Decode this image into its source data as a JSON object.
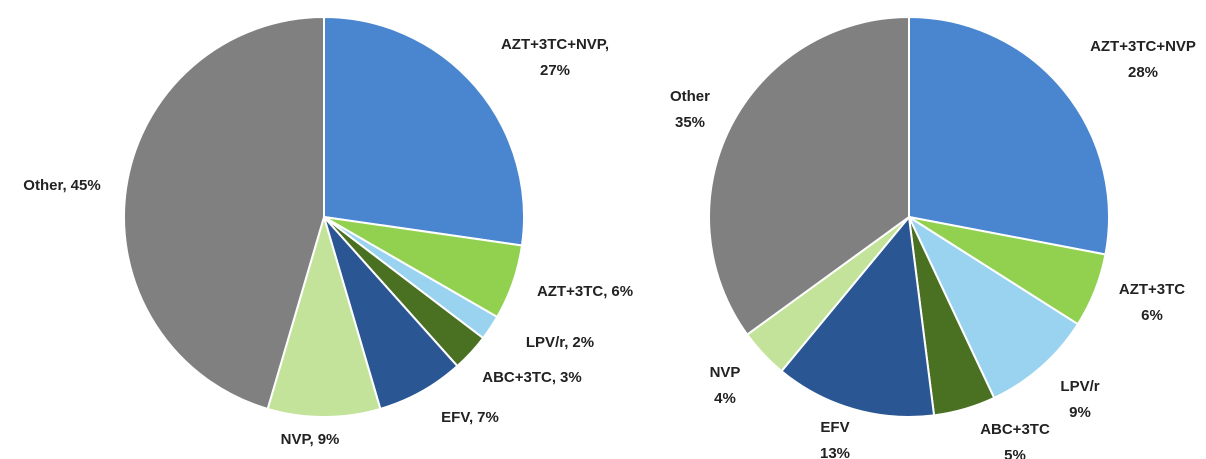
{
  "chart_data": [
    {
      "type": "pie",
      "categories": [
        "AZT+3TC+NVP,",
        "AZT+3TC,",
        "LPV/r,",
        "ABC+3TC,",
        "EFV,",
        "NVP,",
        "Other,"
      ],
      "values": [
        27,
        6,
        2,
        3,
        7,
        9,
        45
      ],
      "value_labels": [
        "27%",
        "6%",
        "2%",
        "3%",
        "7%",
        "9%",
        "45%"
      ],
      "colors": [
        "#4a86cf",
        "#92d050",
        "#99d3f0",
        "#4a7022",
        "#2a5793",
        "#c3e39b",
        "#808080"
      ]
    },
    {
      "type": "pie",
      "categories": [
        "AZT+3TC+NVP",
        "AZT+3TC",
        "LPV/r",
        "ABC+3TC",
        "EFV",
        "NVP",
        "Other"
      ],
      "values": [
        28,
        6,
        9,
        5,
        13,
        4,
        35
      ],
      "value_labels": [
        "28%",
        "6%",
        "9%",
        "5%",
        "13%",
        "4%",
        "35%"
      ],
      "colors": [
        "#4a86cf",
        "#92d050",
        "#99d3f0",
        "#4a7022",
        "#2a5793",
        "#c3e39b",
        "#808080"
      ]
    }
  ]
}
